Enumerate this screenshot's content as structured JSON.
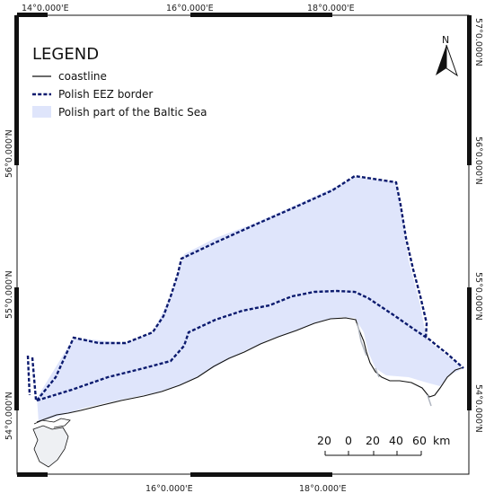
{
  "map": {
    "top_labels": [
      "14°0.000'E",
      "16°0.000'E",
      "18°0.000'E"
    ],
    "bottom_labels": [
      "16°0.000'E",
      "18°0.000'E"
    ],
    "left_labels": [
      "56°0.000'N",
      "55°0.000'N",
      "54°0.000'N"
    ],
    "right_labels": [
      "57°0.000'N",
      "56°0.000'N",
      "55°0.000'N",
      "54°0.000'N"
    ]
  },
  "legend": {
    "title": "LEGEND",
    "items": [
      "coastline",
      "Polish EEZ border",
      "Polish part of the Baltic Sea"
    ]
  },
  "north_arrow": {
    "label": "N"
  },
  "scale_bar": {
    "ticks": [
      "20",
      "0",
      "20",
      "40",
      "60"
    ],
    "unit": "km"
  },
  "colors": {
    "sea_fill": "#dfe5fb",
    "eez_border": "#0b1a6e",
    "coastline": "#111111",
    "land_detail": "#b0b6c0",
    "frame": "#111111"
  }
}
